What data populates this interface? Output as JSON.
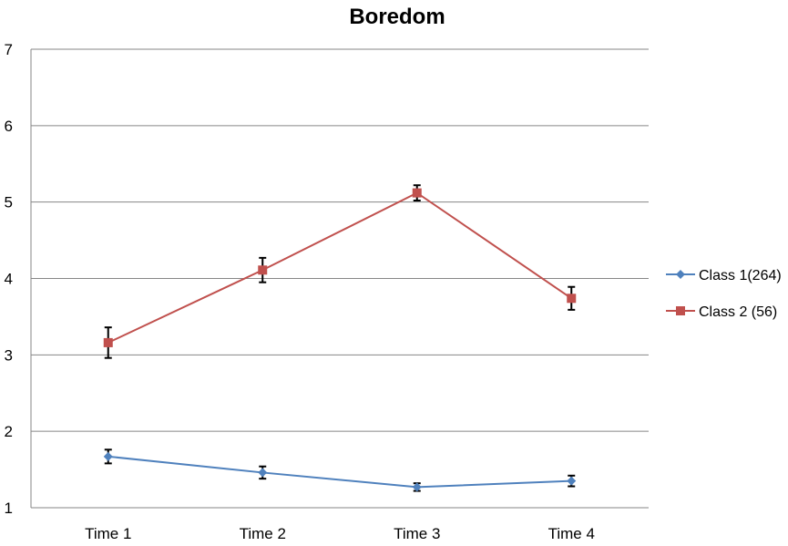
{
  "chart_data": {
    "type": "line",
    "title": "Boredom",
    "xlabel": "",
    "ylabel": "",
    "categories": [
      "Time 1",
      "Time 2",
      "Time 3",
      "Time 4"
    ],
    "ylim": [
      1,
      7
    ],
    "yticks": [
      1,
      2,
      3,
      4,
      5,
      6,
      7
    ],
    "grid": true,
    "legend_position": "right",
    "series": [
      {
        "name": "Class 1(264)",
        "color": "#4F81BD",
        "marker": "diamond",
        "values": [
          1.67,
          1.46,
          1.27,
          1.35
        ],
        "error": [
          0.09,
          0.08,
          0.05,
          0.07
        ]
      },
      {
        "name": "Class 2 (56)",
        "color": "#C0504D",
        "marker": "square",
        "values": [
          3.16,
          4.11,
          5.12,
          3.74
        ],
        "error": [
          0.2,
          0.16,
          0.1,
          0.15
        ]
      }
    ]
  }
}
